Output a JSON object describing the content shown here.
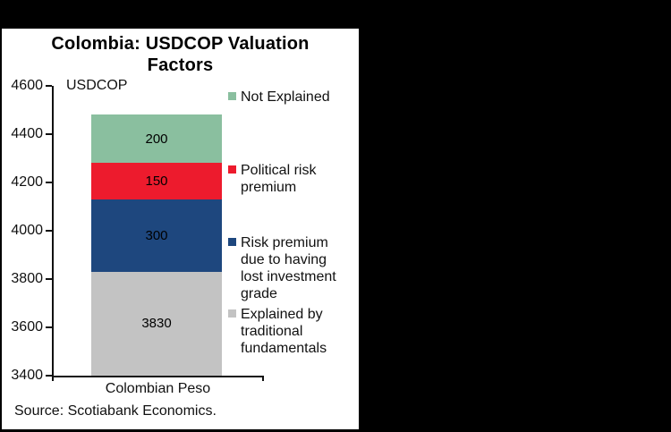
{
  "chart": {
    "title": "Colombia: USDCOP Valuation\nFactors",
    "y_axis_unit": "USDCOP",
    "category_label": "Colombian Peso",
    "source": "Source: Scotiabank Economics."
  },
  "legend": {
    "items": [
      {
        "label": "Not Explained"
      },
      {
        "label": "Political risk\npremium"
      },
      {
        "label": "Risk premium\ndue to having\nlost investment\ngrade"
      },
      {
        "label": "Explained by\ntraditional\nfundamentals"
      }
    ]
  },
  "chart_data": {
    "type": "bar",
    "subtype": "stacked",
    "title": "Colombia: USDCOP Valuation Factors",
    "ylabel": "USDCOP",
    "categories": [
      "Colombian Peso"
    ],
    "ylim": [
      3400,
      4600
    ],
    "yticks": [
      4600,
      4400,
      4200,
      4000,
      3800,
      3600,
      3400
    ],
    "grid": false,
    "legend_position": "right",
    "bar_stack_top": 4480,
    "segments": [
      {
        "name": "Explained by traditional fundamentals",
        "label": "3830",
        "value": 3830,
        "bottom": 3400,
        "top": 3830,
        "color": "#c3c3c3"
      },
      {
        "name": "Risk premium due to having lost investment grade",
        "label": "300",
        "value": 300,
        "bottom": 3830,
        "top": 4130,
        "color": "#1e477e"
      },
      {
        "name": "Political risk premium",
        "label": "150",
        "value": 150,
        "bottom": 4130,
        "top": 4280,
        "color": "#ed1b2d"
      },
      {
        "name": "Not Explained",
        "label": "200",
        "value": 200,
        "bottom": 4280,
        "top": 4480,
        "color": "#8abf9f"
      }
    ],
    "source": "Source: Scotiabank Economics."
  }
}
